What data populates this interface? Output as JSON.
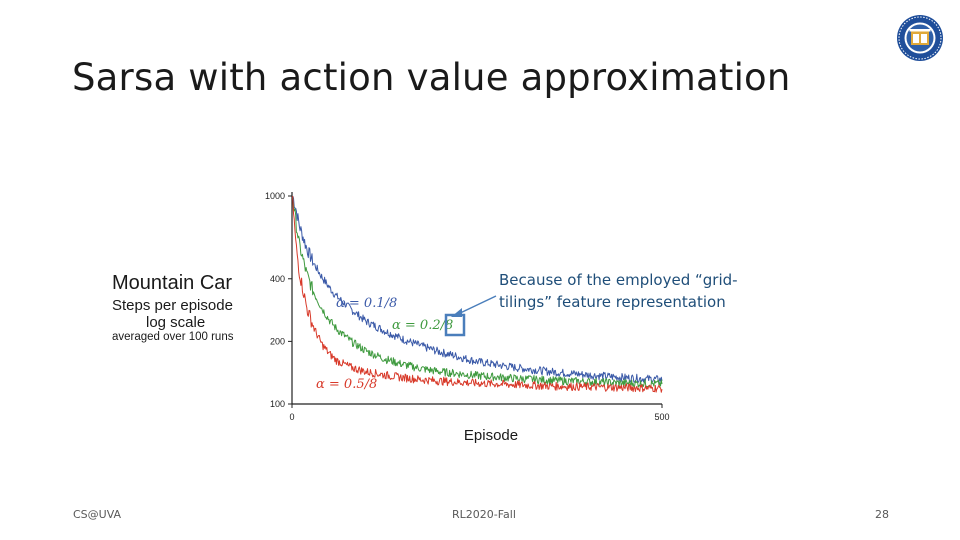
{
  "slide": {
    "title": "Sarsa with action value approximation",
    "footer_left": "CS@UVA",
    "footer_center": "RL2020-Fall",
    "page_number": "28"
  },
  "side_labels": {
    "line1": "Mountain Car",
    "line2": "Steps per episode",
    "line3": "log scale",
    "line4": "averaged over 100 runs"
  },
  "note": {
    "text": "Because of the employed “grid-tilings” feature representation",
    "color": "#1f4e79",
    "arrow_color": "#4a7ebb"
  },
  "chart_data": {
    "type": "line",
    "xlabel": "Episode",
    "ylabel": "",
    "y_scale": "log",
    "xlim": [
      0,
      500
    ],
    "ylim": [
      100,
      1000
    ],
    "x_ticks": [
      0,
      500
    ],
    "x_tick_labels": [
      "0",
      "500"
    ],
    "y_ticks": [
      100,
      200,
      400,
      1000
    ],
    "y_tick_labels": [
      "100",
      "200",
      "400",
      "1000"
    ],
    "series": [
      {
        "name": "α=0.1/8",
        "label_parts": [
          "α",
          "=",
          "0.1/8"
        ],
        "color": "#3b5aa8",
        "x": [
          1,
          5,
          10,
          20,
          30,
          40,
          50,
          60,
          80,
          100,
          125,
          150,
          175,
          200,
          250,
          300,
          350,
          400,
          450,
          500
        ],
        "y": [
          1000,
          880,
          720,
          560,
          470,
          410,
          365,
          330,
          285,
          250,
          225,
          205,
          190,
          178,
          160,
          150,
          143,
          138,
          134,
          131
        ]
      },
      {
        "name": "α=0.2/8",
        "label_parts": [
          "α",
          "=",
          "0.2/8"
        ],
        "color": "#3f9a3f",
        "x": [
          1,
          5,
          10,
          20,
          30,
          40,
          50,
          60,
          80,
          100,
          125,
          150,
          175,
          200,
          250,
          300,
          350,
          400,
          450,
          500
        ],
        "y": [
          1000,
          760,
          580,
          420,
          340,
          290,
          255,
          230,
          200,
          180,
          165,
          155,
          148,
          143,
          137,
          133,
          130,
          128,
          126,
          125
        ]
      },
      {
        "name": "α=0.5/8",
        "label_parts": [
          "α",
          "=",
          "0.5/8"
        ],
        "color": "#d83a2a",
        "x": [
          1,
          5,
          10,
          20,
          30,
          40,
          50,
          60,
          80,
          100,
          125,
          150,
          175,
          200,
          250,
          300,
          350,
          400,
          450,
          500
        ],
        "y": [
          950,
          600,
          430,
          290,
          230,
          195,
          175,
          162,
          150,
          143,
          138,
          134,
          131,
          129,
          126,
          124,
          122,
          121,
          120,
          119
        ]
      }
    ]
  }
}
